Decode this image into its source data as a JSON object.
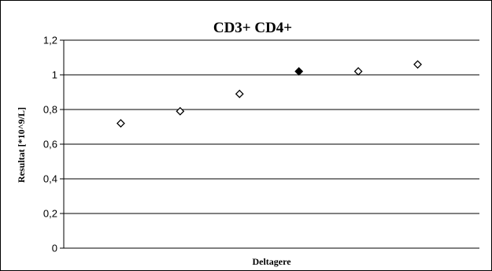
{
  "chart_data": {
    "type": "scatter",
    "title": "CD3+ CD4+",
    "xlabel": "Deltagere",
    "ylabel": "Resultat [*10^9/L]",
    "ylim": [
      0,
      1.2
    ],
    "yticks": [
      0,
      0.2,
      0.4,
      0.6,
      0.8,
      1,
      1.2
    ],
    "ytick_labels": [
      "0",
      "0,2",
      "0,4",
      "0,6",
      "0,8",
      "1",
      "1,2"
    ],
    "grid": true,
    "legend": "none",
    "series": [
      {
        "marker": "diamond",
        "points": [
          {
            "x": 1,
            "y": 0.72,
            "filled": false
          },
          {
            "x": 2,
            "y": 0.79,
            "filled": false
          },
          {
            "x": 3,
            "y": 0.89,
            "filled": false
          },
          {
            "x": 4,
            "y": 1.02,
            "filled": true
          },
          {
            "x": 5,
            "y": 1.02,
            "filled": false
          },
          {
            "x": 6,
            "y": 1.06,
            "filled": false
          }
        ]
      }
    ],
    "colors": {
      "marker_stroke": "#000000",
      "marker_fill_open": "#ffffff",
      "marker_fill_solid": "#000000"
    }
  }
}
